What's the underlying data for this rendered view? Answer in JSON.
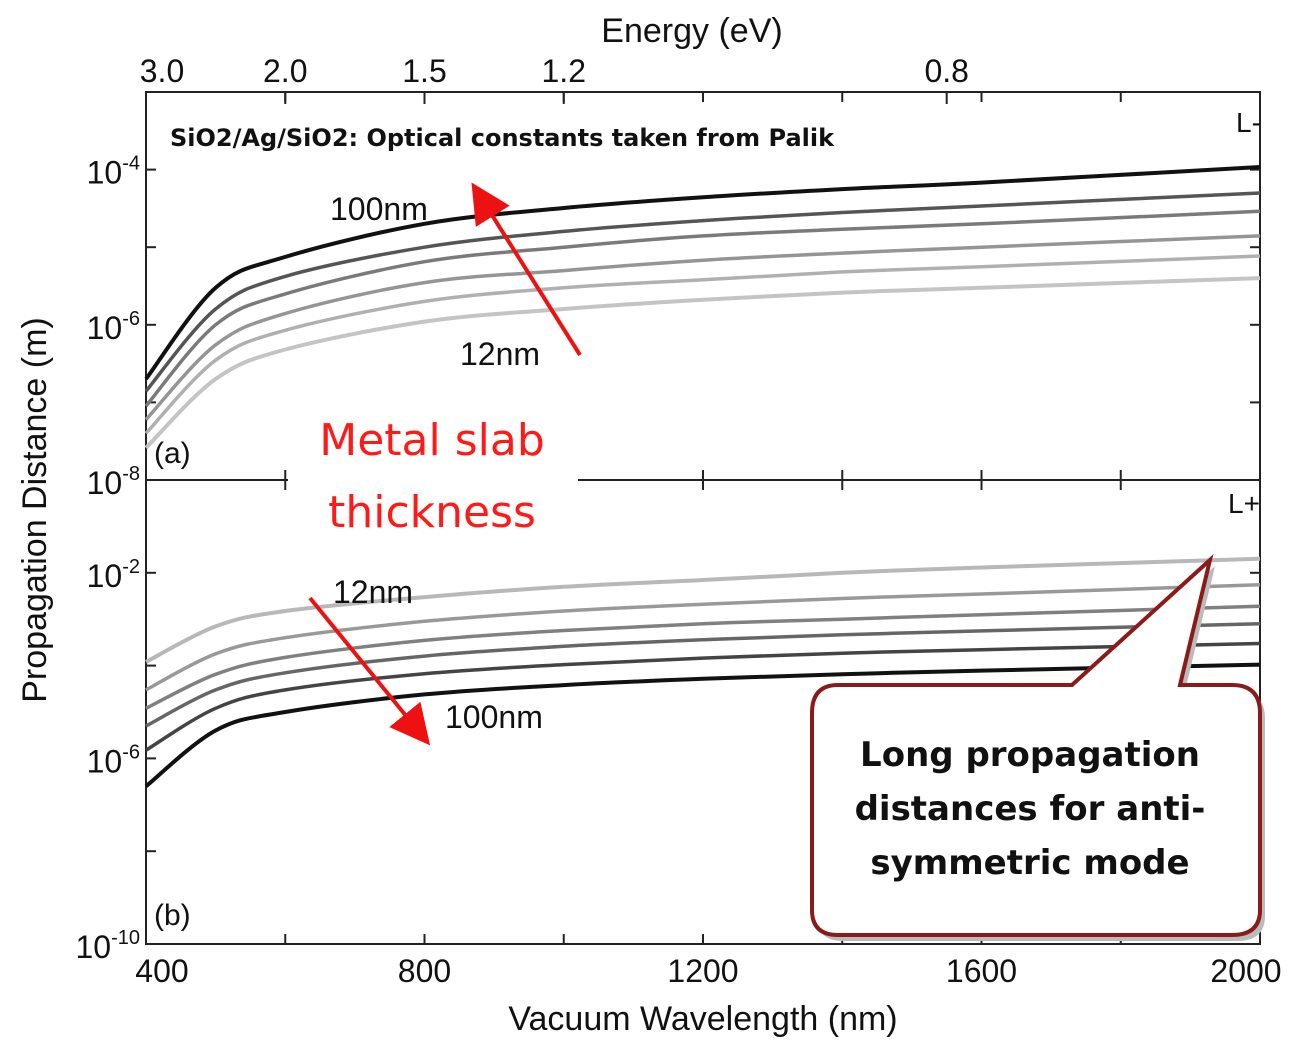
{
  "figure": {
    "top_axis_label": "Energy (eV)",
    "x_axis_label": "Vacuum Wavelength (nm)",
    "y_axis_label": "Propagation Distance (m)",
    "top_ticks": [
      {
        "value": 400,
        "label": "3.0"
      },
      {
        "value": 600,
        "label": "2.0"
      },
      {
        "value": 800,
        "label": "1.5"
      },
      {
        "value": 1000,
        "label": "1.2"
      },
      {
        "value": 1550,
        "label": "0.8"
      }
    ],
    "x_ticks": [
      {
        "value": 400,
        "label": "400"
      },
      {
        "value": 800,
        "label": "800"
      },
      {
        "value": 1200,
        "label": "1200"
      },
      {
        "value": 1600,
        "label": "1600"
      },
      {
        "value": 2000,
        "label": "2000"
      }
    ],
    "annotation_title": "SiO2/Ag/SiO2: Optical constants taken from Palik",
    "metal_label_line1": "Metal slab",
    "metal_label_line2": "thickness",
    "callout_line1": "Long propagation",
    "callout_line2": "distances for anti-",
    "callout_line3": "symmetric mode",
    "colors": {
      "arrow": "#ee1111",
      "callout_border": "#8b1a1a",
      "callout_shadow": "#bbbbbb",
      "metal_label": "#ff1a1a"
    }
  },
  "chart_data": [
    {
      "type": "line",
      "panel_label": "(a)",
      "mode_label": "L-",
      "xlim": [
        400,
        2000
      ],
      "ylim": [
        1e-08,
        0.001
      ],
      "yscale": "log",
      "y_ticks": [
        {
          "value": 0.0001,
          "label": "10",
          "exp": "-4"
        },
        {
          "value": 1e-06,
          "label": "10",
          "exp": "-6"
        },
        {
          "value": 1e-08,
          "label": "10",
          "exp": "-8"
        }
      ],
      "x": [
        400,
        500,
        600,
        800,
        1000,
        1200,
        1400,
        1600,
        2000
      ],
      "series": [
        {
          "name": "100nm",
          "color": "#111111",
          "values": [
            2e-07,
            3e-06,
            7.5e-06,
            2e-05,
            3.2e-05,
            4.4e-05,
            5.6e-05,
            6.8e-05,
            0.000108
          ]
        },
        {
          "name": "",
          "color": "#555555",
          "values": [
            1.4e-07,
            1.6e-06,
            4.2e-06,
            1e-05,
            1.6e-05,
            2.2e-05,
            2.8e-05,
            3.4e-05,
            5e-05
          ]
        },
        {
          "name": "",
          "color": "#7a7a7a",
          "values": [
            9e-08,
            1e-06,
            2.5e-06,
            6.5e-06,
            1e-05,
            1.4e-05,
            1.7e-05,
            2e-05,
            2.9e-05
          ]
        },
        {
          "name": "",
          "color": "#959595",
          "values": [
            6e-08,
            5.5e-07,
            1.4e-06,
            3.5e-06,
            5e-06,
            6.8e-06,
            8.4e-06,
            1e-05,
            1.4e-05
          ]
        },
        {
          "name": "",
          "color": "#b0b0b0",
          "values": [
            4e-08,
            3.5e-07,
            8.5e-07,
            2e-06,
            3e-06,
            3.8e-06,
            4.8e-06,
            5.6e-06,
            7.7e-06
          ]
        },
        {
          "name": "12nm",
          "color": "#c4c4c4",
          "values": [
            2.6e-08,
            2e-07,
            4.8e-07,
            1.1e-06,
            1.6e-06,
            2.1e-06,
            2.6e-06,
            3e-06,
            4e-06
          ]
        }
      ],
      "annotations": [
        "100nm",
        "12nm"
      ]
    },
    {
      "type": "line",
      "panel_label": "(b)",
      "mode_label": "L+",
      "xlim": [
        400,
        2000
      ],
      "ylim": [
        1e-10,
        1
      ],
      "yscale": "log",
      "y_ticks": [
        {
          "value": 0.01,
          "label": "10",
          "exp": "-2"
        },
        {
          "value": 1e-06,
          "label": "10",
          "exp": "-6"
        },
        {
          "value": 1e-10,
          "label": "10",
          "exp": "-10"
        }
      ],
      "x": [
        400,
        500,
        600,
        800,
        1000,
        1200,
        1400,
        1600,
        2000
      ],
      "series": [
        {
          "name": "12nm",
          "color": "#b8b8b8",
          "values": [
            0.00012,
            0.0007,
            0.0015,
            0.003,
            0.005,
            0.007,
            0.01,
            0.013,
            0.02
          ]
        },
        {
          "name": "",
          "color": "#999999",
          "values": [
            3e-05,
            0.00018,
            0.0004,
            0.0009,
            0.0015,
            0.0021,
            0.0028,
            0.0035,
            0.0055
          ]
        },
        {
          "name": "",
          "color": "#808080",
          "values": [
            1.2e-05,
            6.5e-05,
            0.00015,
            0.00035,
            0.00057,
            0.0008,
            0.001,
            0.00125,
            0.0019
          ]
        },
        {
          "name": "",
          "color": "#666666",
          "values": [
            5e-06,
            3e-05,
            7e-05,
            0.00016,
            0.00026,
            0.00036,
            0.00046,
            0.00056,
            0.0008
          ]
        },
        {
          "name": "",
          "color": "#444444",
          "values": [
            1.5e-06,
            1.2e-05,
            3e-05,
            6.7e-05,
            0.000105,
            0.000145,
            0.000185,
            0.00022,
            0.0003
          ]
        },
        {
          "name": "100nm",
          "color": "#111111",
          "values": [
            2.5e-07,
            4e-06,
            1e-05,
            2.4e-05,
            3.8e-05,
            5.2e-05,
            6.5e-05,
            7.8e-05,
            0.000105
          ]
        }
      ],
      "annotations": [
        "12nm",
        "100nm"
      ]
    }
  ]
}
